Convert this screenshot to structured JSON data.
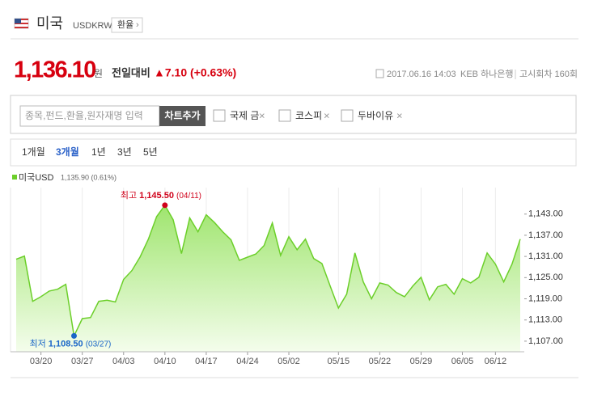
{
  "header": {
    "name": "미국",
    "code": "USDKRW",
    "button": "환율"
  },
  "quote": {
    "price": "1,136.10",
    "unit": "원",
    "change_label": "전일대비",
    "change": "▲7.10 (+0.63%)",
    "datetime": "2017.06.16 14:03",
    "bank": "KEB 하나은행",
    "round": "고시회차 160회"
  },
  "search": {
    "placeholder": "종목,펀드,환율,원자재명 입력",
    "button": "차트추가",
    "options": [
      "국제 금",
      "코스피",
      "두바이유"
    ]
  },
  "periods": {
    "items": [
      "1개월",
      "3개월",
      "1년",
      "3년",
      "5년"
    ],
    "selected": 1
  },
  "chart_data": {
    "type": "area",
    "legend_value": "1,135.90 (0.61%)",
    "categories": [
      null,
      null,
      null,
      "03/20",
      null,
      null,
      null,
      null,
      "03/27",
      null,
      null,
      null,
      null,
      "04/03",
      null,
      null,
      null,
      null,
      "04/10",
      null,
      null,
      null,
      null,
      "04/17",
      null,
      null,
      null,
      null,
      "04/24",
      null,
      null,
      null,
      null,
      "05/02",
      null,
      null,
      null,
      null,
      null,
      "05/15",
      null,
      null,
      null,
      null,
      "05/22",
      null,
      null,
      null,
      null,
      "05/29",
      null,
      null,
      null,
      null,
      "06/05",
      null,
      null,
      null,
      "06/12",
      null,
      null,
      null
    ],
    "series": [
      {
        "name": "미국USD",
        "color": "#6ccf2a",
        "values": [
          1130.2,
          1131.1,
          1118.3,
          1119.6,
          1121.2,
          1121.7,
          1123.1,
          1108.5,
          1113.4,
          1113.7,
          1118.3,
          1118.6,
          1118.1,
          1124.5,
          1127.0,
          1130.9,
          1135.9,
          1142.3,
          1145.5,
          1141.4,
          1131.8,
          1141.9,
          1138.0,
          1142.8,
          1140.6,
          1138.0,
          1135.7,
          1129.9,
          1130.8,
          1131.7,
          1134.1,
          1140.5,
          1131.3,
          1136.6,
          1132.9,
          1135.9,
          1130.4,
          1129.0,
          1122.6,
          1116.4,
          1120.3,
          1132.0,
          1123.8,
          1119.0,
          1123.5,
          1122.9,
          1120.8,
          1119.6,
          1122.6,
          1125.1,
          1118.7,
          1122.4,
          1123.1,
          1120.3,
          1124.7,
          1123.5,
          1125.1,
          1132.0,
          1128.8,
          1123.8,
          1128.8,
          1135.9
        ]
      }
    ],
    "high": {
      "label": "최고",
      "value": 1145.5,
      "value_label": "1,145.50",
      "date": "(04/11)",
      "color": "#d0021b"
    },
    "low": {
      "label": "최저",
      "value": 1108.5,
      "value_label": "1,108.50",
      "date": "(03/27)",
      "color": "#1a66c8"
    },
    "ylim": [
      1104,
      1150.5
    ],
    "yticks": [
      {
        "value": 1107,
        "label": "1,107.00"
      },
      {
        "value": 1113,
        "label": "1,113.00"
      },
      {
        "value": 1119,
        "label": "1,119.00"
      },
      {
        "value": 1125,
        "label": "1,125.00"
      },
      {
        "value": 1131,
        "label": "1,131.00"
      },
      {
        "value": 1137,
        "label": "1,137.00"
      },
      {
        "value": 1143,
        "label": "1,143.00"
      }
    ],
    "grid": true
  }
}
